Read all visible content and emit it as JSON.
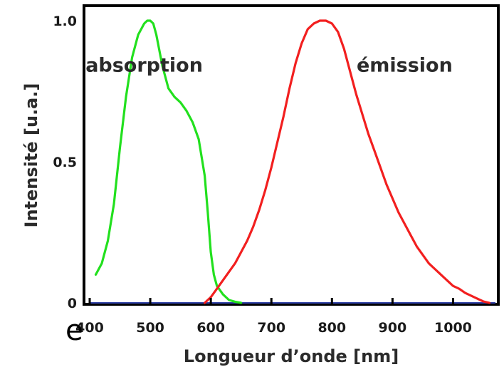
{
  "chart_data": {
    "type": "line",
    "title": "",
    "xlabel": "Longueur d’onde [nm]",
    "ylabel": "Intensité [u.a.]",
    "xlim": [
      400,
      1070
    ],
    "ylim": [
      0,
      1.06
    ],
    "grid": false,
    "x_ticks": [
      400,
      500,
      600,
      700,
      800,
      900,
      1000
    ],
    "x_tick_labels": [
      "400",
      "500",
      "600",
      "700",
      "800",
      "900",
      "1000"
    ],
    "y_ticks": [
      0,
      0.5,
      1.0
    ],
    "y_tick_labels": [
      "0",
      "0.5",
      "1.0"
    ],
    "annotations": [
      {
        "text": "absorption",
        "x": 490,
        "y": 0.82
      },
      {
        "text": "émission",
        "x": 920,
        "y": 0.82
      }
    ],
    "series": [
      {
        "name": "absorption",
        "color": "#22e01e",
        "x": [
          410,
          420,
          430,
          440,
          450,
          460,
          470,
          480,
          490,
          495,
          500,
          505,
          510,
          520,
          530,
          540,
          550,
          560,
          570,
          580,
          590,
          595,
          600,
          605,
          610,
          620,
          630,
          640,
          650
        ],
        "y": [
          0.1,
          0.14,
          0.22,
          0.35,
          0.55,
          0.73,
          0.87,
          0.95,
          0.99,
          1.0,
          1.0,
          0.99,
          0.95,
          0.84,
          0.76,
          0.73,
          0.71,
          0.68,
          0.64,
          0.58,
          0.45,
          0.32,
          0.18,
          0.1,
          0.06,
          0.03,
          0.01,
          0.004,
          0.0
        ]
      },
      {
        "name": "émission",
        "color": "#f21f1f",
        "x": [
          590,
          600,
          610,
          620,
          630,
          640,
          650,
          660,
          670,
          680,
          690,
          700,
          710,
          720,
          730,
          740,
          750,
          760,
          770,
          780,
          790,
          800,
          810,
          820,
          830,
          840,
          850,
          860,
          870,
          880,
          890,
          900,
          910,
          920,
          930,
          940,
          950,
          960,
          970,
          980,
          990,
          1000,
          1010,
          1020,
          1030,
          1040,
          1050,
          1060
        ],
        "y": [
          0.0,
          0.02,
          0.05,
          0.08,
          0.11,
          0.14,
          0.18,
          0.22,
          0.27,
          0.33,
          0.4,
          0.48,
          0.57,
          0.66,
          0.76,
          0.85,
          0.92,
          0.97,
          0.99,
          1.0,
          1.0,
          0.99,
          0.96,
          0.9,
          0.82,
          0.74,
          0.67,
          0.6,
          0.54,
          0.48,
          0.42,
          0.37,
          0.32,
          0.28,
          0.24,
          0.2,
          0.17,
          0.14,
          0.12,
          0.1,
          0.08,
          0.06,
          0.05,
          0.035,
          0.025,
          0.015,
          0.005,
          0.0
        ]
      }
    ]
  },
  "stray_glyph": "e"
}
